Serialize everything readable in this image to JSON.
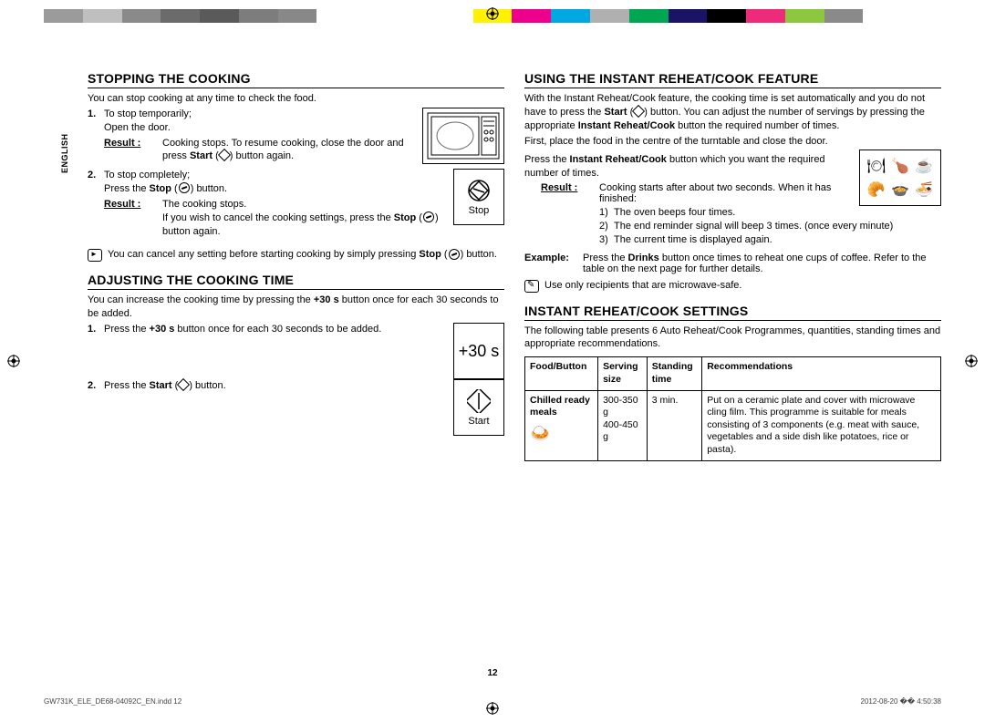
{
  "colorBar": [
    "#9b9b9b",
    "#bfbfbf",
    "#8a8a8a",
    "#6b6b6b",
    "#5a5a5a",
    "#7d7d7d",
    "#888",
    "#ffffff",
    "#ffffff",
    "#ffffff",
    "#ffffff",
    "#fff200",
    "#ec008c",
    "#00a8e1",
    "#b0b0b0",
    "#00a651",
    "#1b1464",
    "#000000",
    "#ee2a7b",
    "#8dc63f",
    "#8a8a8a",
    "#ffffff",
    "#ffffff"
  ],
  "lang": "ENGLISH",
  "left": {
    "stopping": {
      "title": "STOPPING THE COOKING",
      "intro": "You can stop cooking at any time to check the food.",
      "step1": {
        "num": "1.",
        "text": "To stop temporarily;",
        "text2": "Open the door."
      },
      "step1result": {
        "label": "Result :",
        "text": "Cooking stops. To resume cooking, close the door and press Start ( ) button again."
      },
      "step2": {
        "num": "2.",
        "text": "To stop completely;",
        "text2": "Press the Stop ( ) button."
      },
      "step2result": {
        "label": "Result :",
        "text": "The cooking stops.",
        "text2": "If you wish to cancel the cooking settings, press the Stop ( ) button again."
      },
      "note": "You can cancel any setting before starting cooking by simply pressing Stop ( ) button.",
      "stopLabel": "Stop"
    },
    "adjusting": {
      "title": "ADJUSTING THE COOKING TIME",
      "intro": "You can increase the cooking time by pressing the +30 s button once for each 30 seconds to be added.",
      "step1": {
        "num": "1.",
        "text": "Press the +30 s button once for each 30 seconds to be added."
      },
      "step2": {
        "num": "2.",
        "text": "Press the Start ( ) button."
      },
      "btn30": "+30 s",
      "startLabel": "Start"
    }
  },
  "right": {
    "instant": {
      "title": "USING THE INSTANT REHEAT/COOK FEATURE",
      "p1": "With the Instant Reheat/Cook feature, the cooking time is set automatically and you do not have to press the Start ( ) button. You can adjust the number of servings by pressing the appropriate Instant Reheat/Cook button the required number of times.",
      "p2": "First, place the food in the centre of the turntable and close the door.",
      "press": "Press the Instant Reheat/Cook button which you want the required number of times.",
      "result": {
        "label": "Result :",
        "text": "Cooking starts after about two seconds. When it has finished:"
      },
      "sub": [
        {
          "n": "1)",
          "t": "The oven beeps four times."
        },
        {
          "n": "2)",
          "t": "The end reminder signal will beep 3 times. (once every minute)"
        },
        {
          "n": "3)",
          "t": "The current time is displayed again."
        }
      ],
      "example": {
        "label": "Example:",
        "text": "Press the Drinks button once times to reheat one cups of coffee. Refer to the table on the next page for further details."
      },
      "note": "Use only recipients that are microwave-safe."
    },
    "settings": {
      "title": "INSTANT REHEAT/COOK SETTINGS",
      "intro": "The following table presents 6 Auto Reheat/Cook Programmes, quantities, standing times and appropriate recommendations.",
      "headers": [
        "Food/Button",
        "Serving size",
        "Standing time",
        "Recommendations"
      ],
      "row": {
        "food": "Chilled ready meals",
        "serving": "300-350 g\n400-450 g",
        "standing": "3 min.",
        "rec": "Put on a ceramic plate and cover with microwave cling film. This programme is suitable for meals consisting of 3 components (e.g. meat with sauce, vegetables and a side dish like potatoes, rice or pasta)."
      }
    }
  },
  "pageNum": "12",
  "footer": {
    "left": "GW731K_ELE_DE68-04092C_EN.indd   12",
    "right": "2012-08-20   �� 4:50:38"
  }
}
